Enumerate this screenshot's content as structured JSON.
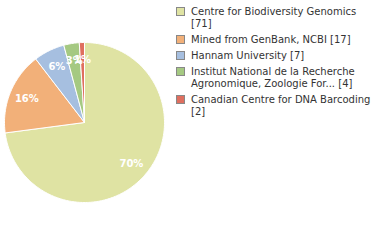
{
  "chart_data": {
    "type": "pie",
    "categories": [
      "Centre for Biodiversity Genomics [71]",
      "Mined from GenBank, NCBI [17]",
      "Hannam University [7]",
      "Institut National de la Recherche Agronomique, Zoologie For... [4]",
      "Canadian Centre for DNA Barcoding [2]"
    ],
    "values": [
      70,
      16,
      6,
      3,
      1
    ],
    "value_labels": [
      "70%",
      "16%",
      "6%",
      "3%",
      "1%"
    ],
    "colors": [
      "#dfe3a3",
      "#f2b079",
      "#a6bfe0",
      "#a5c982",
      "#df6f5f"
    ],
    "data_labels": true,
    "legend": "right"
  }
}
